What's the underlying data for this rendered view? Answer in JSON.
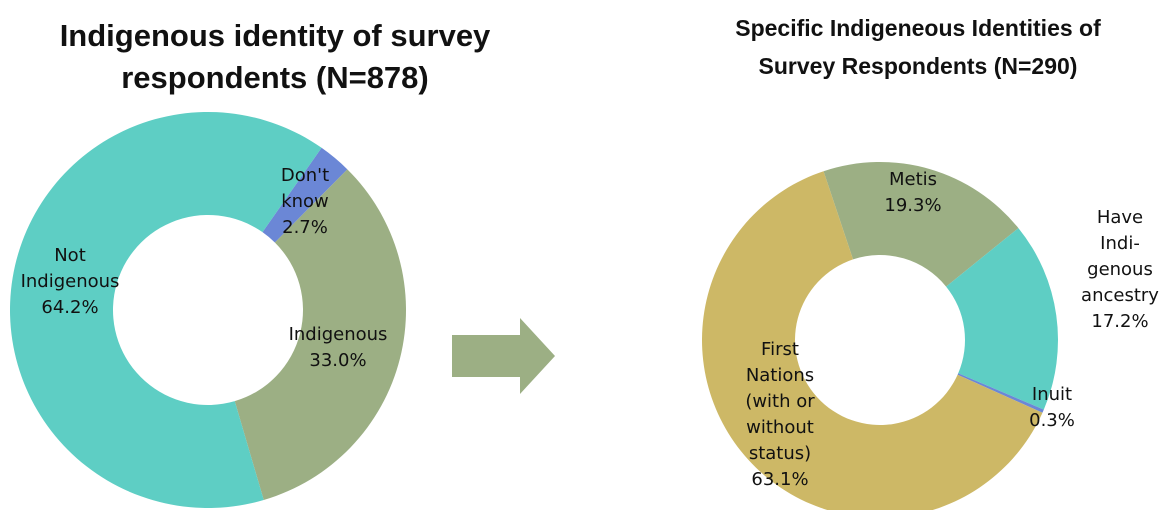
{
  "chart_data": [
    {
      "type": "donut",
      "title": "Indigenous identity of survey\nrespondents (N=878)",
      "categories": [
        "Don't\nknow",
        "Indigenous",
        "Not\nIndigenous"
      ],
      "values": [
        2.7,
        33.0,
        64.2
      ],
      "value_labels": [
        "2.7%",
        "33.0%",
        "64.2%"
      ],
      "colors": [
        "#6b87d6",
        "#9caf84",
        "#5ecec4"
      ]
    },
    {
      "type": "donut",
      "title": "Specific Indigeneous Identities of\nSurvey Respondents (N=290)",
      "categories": [
        "Metis",
        "Have\nIndi-\ngenous\nancestry",
        "Inuit",
        "First\nNations\n(with or\nwithout\nstatus)"
      ],
      "values": [
        19.3,
        17.2,
        0.3,
        63.1
      ],
      "value_labels": [
        "19.3%",
        "17.2%",
        "0.3%",
        "63.1%"
      ],
      "colors": [
        "#9caf84",
        "#5ecec4",
        "#6b87d6",
        "#cdb866"
      ]
    }
  ]
}
